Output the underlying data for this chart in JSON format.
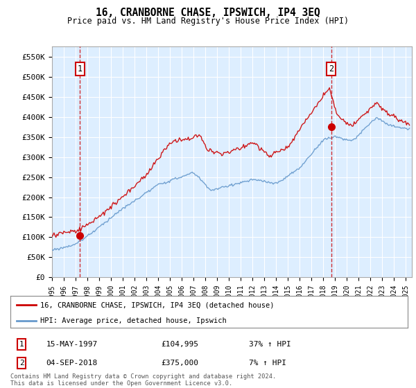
{
  "title": "16, CRANBORNE CHASE, IPSWICH, IP4 3EQ",
  "subtitle": "Price paid vs. HM Land Registry's House Price Index (HPI)",
  "ylabel_ticks": [
    "£0",
    "£50K",
    "£100K",
    "£150K",
    "£200K",
    "£250K",
    "£300K",
    "£350K",
    "£400K",
    "£450K",
    "£500K",
    "£550K"
  ],
  "ytick_values": [
    0,
    50000,
    100000,
    150000,
    200000,
    250000,
    300000,
    350000,
    400000,
    450000,
    500000,
    550000
  ],
  "ylim": [
    0,
    575000
  ],
  "xlim_start": 1995.0,
  "xlim_end": 2025.5,
  "sale1_x": 1997.37,
  "sale1_y": 104995,
  "sale2_x": 2018.67,
  "sale2_y": 375000,
  "red_line_color": "#cc0000",
  "blue_line_color": "#6699cc",
  "background_color": "#ddeeff",
  "annotation1_date": "15-MAY-1997",
  "annotation1_price": "£104,995",
  "annotation1_hpi": "37% ↑ HPI",
  "annotation2_date": "04-SEP-2018",
  "annotation2_price": "£375,000",
  "annotation2_hpi": "7% ↑ HPI",
  "legend_label1": "16, CRANBORNE CHASE, IPSWICH, IP4 3EQ (detached house)",
  "legend_label2": "HPI: Average price, detached house, Ipswich",
  "footer": "Contains HM Land Registry data © Crown copyright and database right 2024.\nThis data is licensed under the Open Government Licence v3.0."
}
